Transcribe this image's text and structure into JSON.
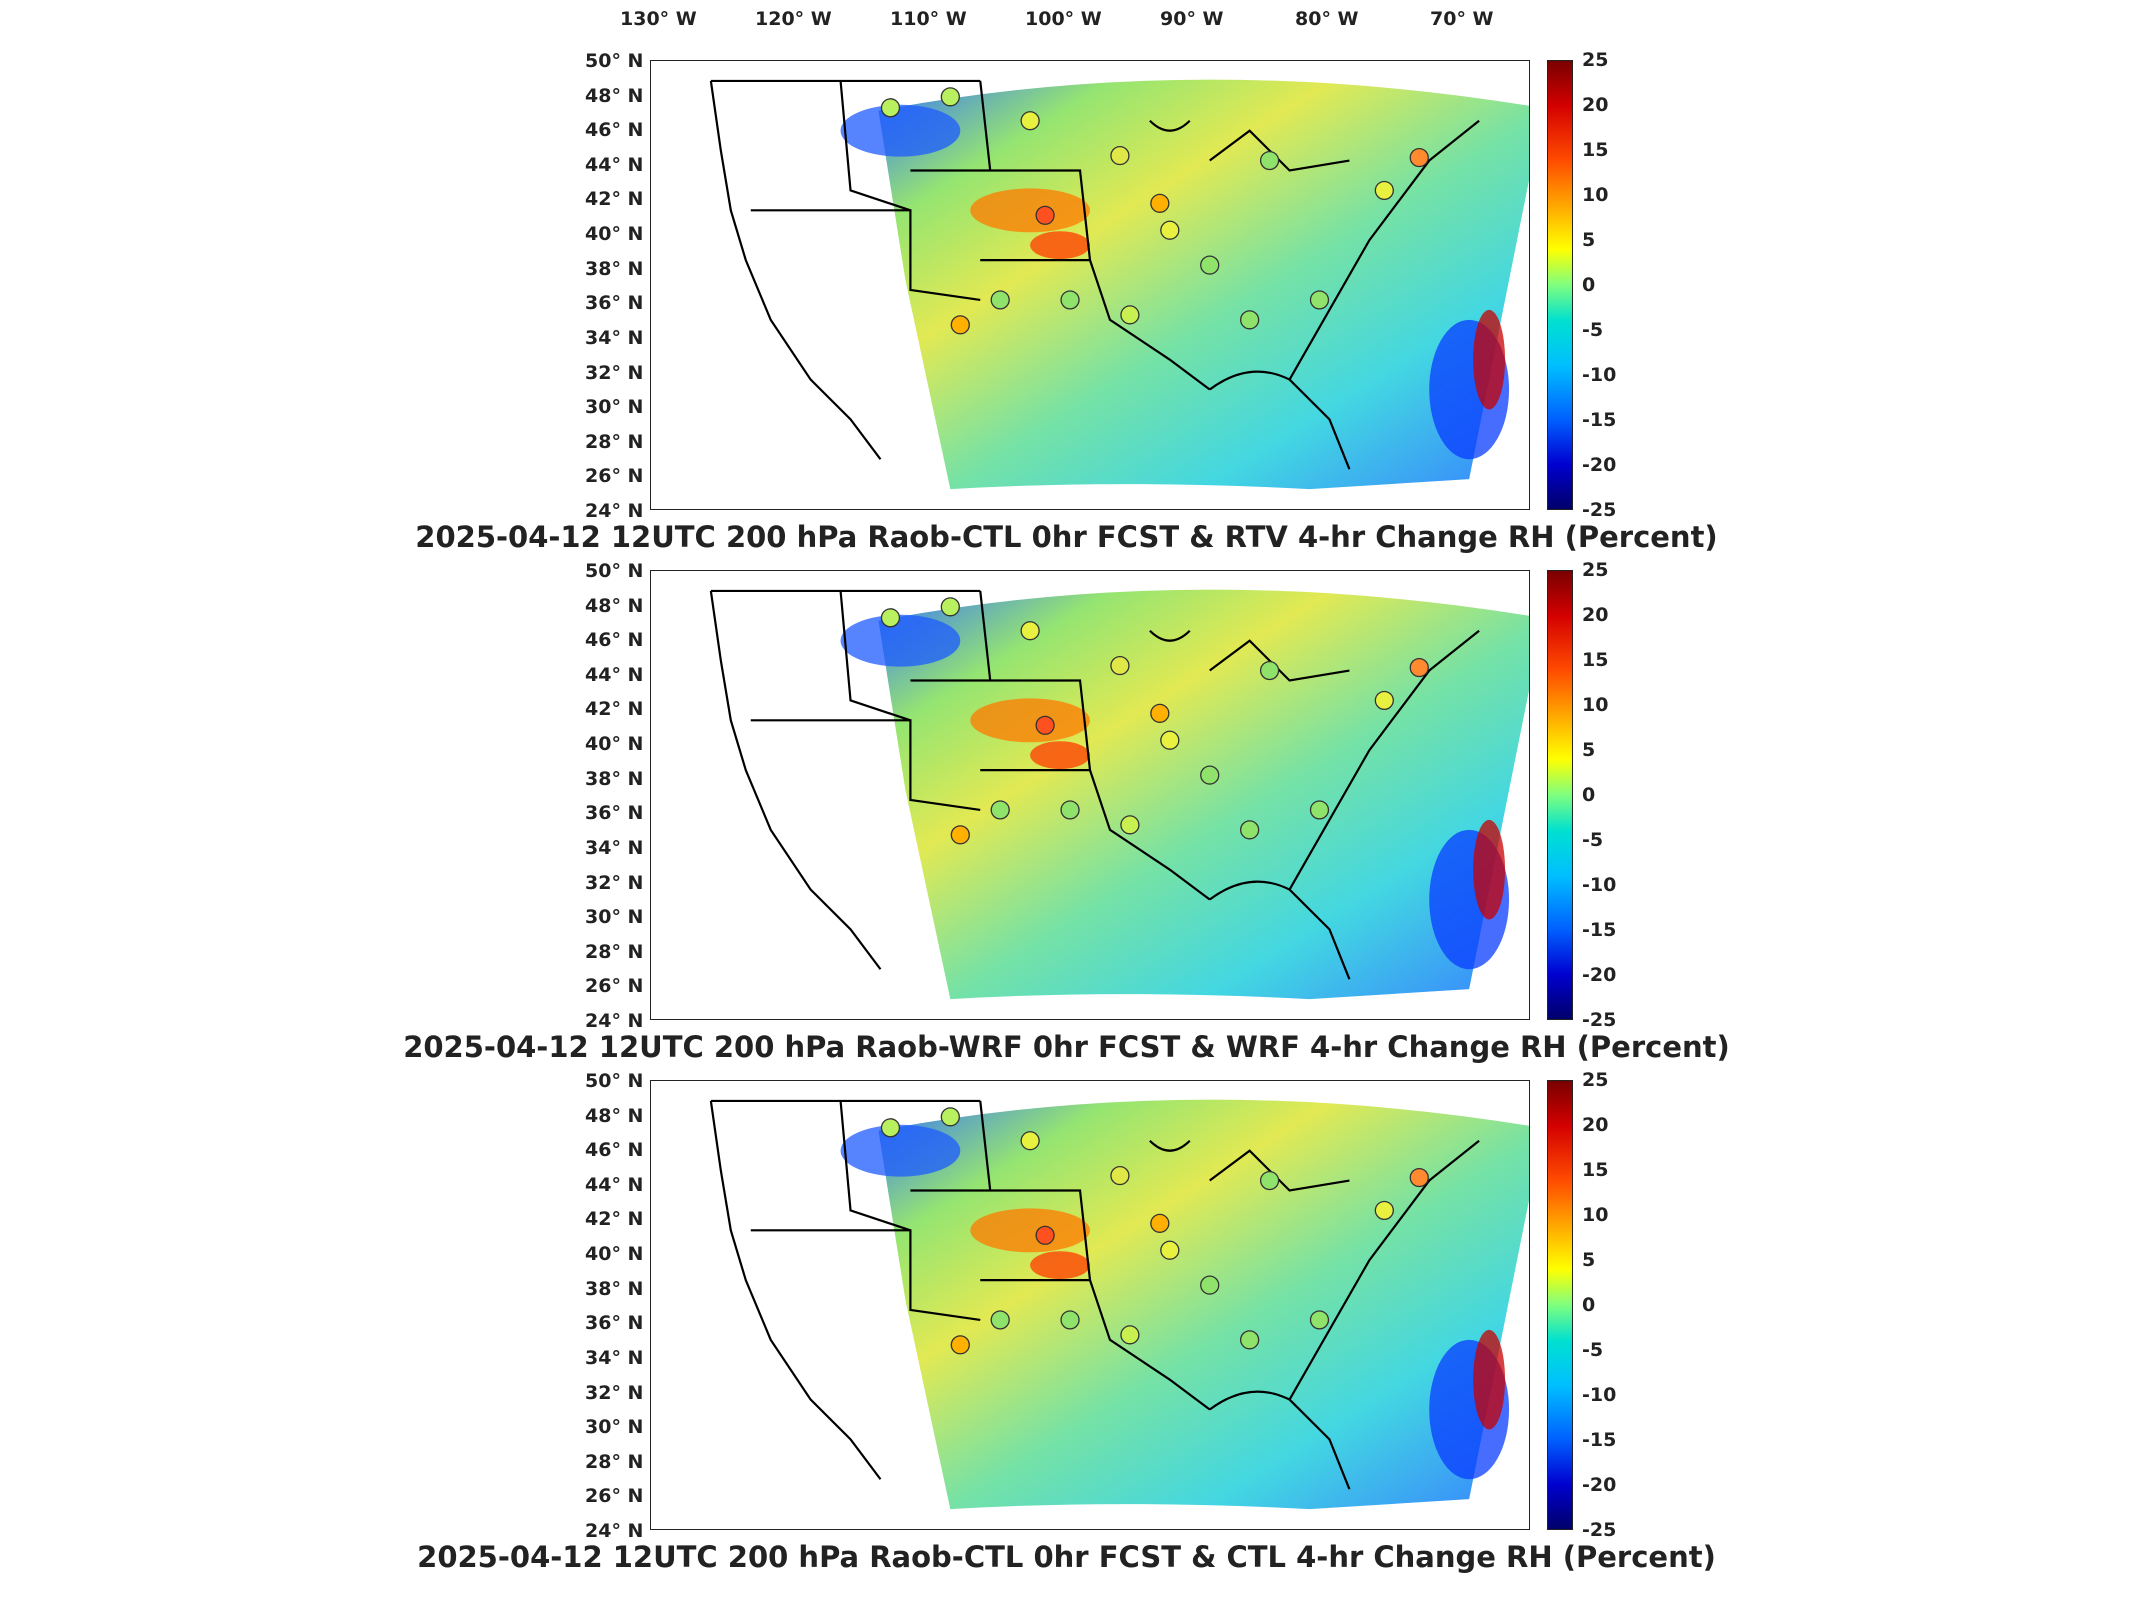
{
  "lon_labels": [
    "130° W",
    "120° W",
    "110° W",
    "100° W",
    "90° W",
    "80° W",
    "70° W"
  ],
  "lat_labels": [
    "50° N",
    "48° N",
    "46° N",
    "44° N",
    "42° N",
    "40° N",
    "38° N",
    "36° N",
    "34° N",
    "32° N",
    "30° N",
    "28° N",
    "26° N",
    "24° N"
  ],
  "colorbar_ticks": [
    "25",
    "20",
    "15",
    "10",
    "5",
    "0",
    "-5",
    "-10",
    "-15",
    "-20",
    "-25"
  ],
  "colorbar_range": [
    -25,
    25
  ],
  "colors": {
    "outline": "#000000",
    "frame": "#222222"
  },
  "panels": [
    {
      "title": "2025-04-12 12UTC 200 hPa Raob-CTL 0hr FCST & RTV 4-hr Change RH (Percent)"
    },
    {
      "title": "2025-04-12 12UTC 200 hPa Raob-WRF 0hr FCST & WRF 4-hr Change RH (Percent)"
    },
    {
      "title": "2025-04-12 12UTC 200 hPa Raob-CTL 0hr FCST & CTL 4-hr Change RH (Percent)"
    }
  ]
}
